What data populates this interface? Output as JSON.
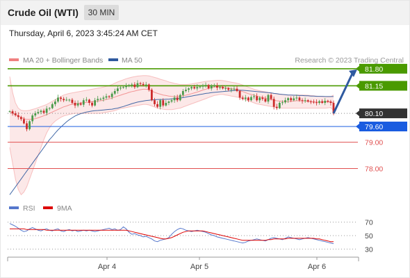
{
  "header": {
    "title": "Crude Oil (WTI)",
    "interval": "30 MIN"
  },
  "datetime": "Thursday, April 6, 2023 3:45:24 AM CET",
  "colors": {
    "bollinger": "#f08080",
    "ma50": "#2f5a9e",
    "resistance": "#4a9a00",
    "pivot": "#1a5ce0",
    "support": "#e05050",
    "last_price": "#333333",
    "rsi": "#5577cc",
    "rsi_ma": "#dd0000"
  },
  "chart_data": [
    {
      "type": "candlestick",
      "legend": [
        {
          "label": "MA 20 + Bollinger Bands",
          "color": "#f08080"
        },
        {
          "label": "MA 50",
          "color": "#2f5a9e"
        }
      ],
      "credit": "Research © 2023 Trading Central",
      "x_ticks": [
        "Apr 4",
        "Apr 5",
        "Apr 6"
      ],
      "ylim": [
        76.9,
        82.3
      ],
      "levels": [
        {
          "value": 81.8,
          "label": "81.80",
          "kind": "resistance"
        },
        {
          "value": 81.15,
          "label": "81.15",
          "kind": "resistance"
        },
        {
          "value": 80.1,
          "label": "80.10",
          "kind": "last_price"
        },
        {
          "value": 79.6,
          "label": "79.60",
          "kind": "pivot"
        },
        {
          "value": 79.0,
          "label": "79.00",
          "kind": "support"
        },
        {
          "value": 78.0,
          "label": "78.00",
          "kind": "support"
        }
      ],
      "close": [
        80.18,
        80.1,
        80.03,
        79.96,
        79.88,
        79.72,
        79.5,
        79.8,
        80.02,
        80.1,
        80.15,
        80.2,
        80.12,
        80.28,
        80.3,
        80.45,
        80.55,
        80.7,
        80.65,
        80.6,
        80.62,
        80.62,
        80.5,
        80.4,
        80.48,
        80.43,
        80.6,
        80.62,
        80.5,
        80.4,
        80.6,
        80.65,
        80.65,
        80.7,
        80.75,
        80.72,
        80.85,
        80.95,
        81.05,
        81.08,
        81.1,
        81.15,
        81.18,
        81.2,
        81.1,
        81.25,
        81.22,
        81.18,
        81.2,
        81.0,
        80.6,
        80.45,
        80.35,
        80.6,
        80.4,
        80.5,
        80.55,
        80.6,
        80.7,
        80.6,
        80.8,
        80.95,
        81.0,
        81.05,
        81.1,
        81.05,
        81.1,
        81.12,
        81.15,
        81.18,
        81.05,
        81.15,
        81.15,
        81.08,
        81.1,
        81.05,
        81.06,
        81.0,
        81.02,
        81.04,
        80.95,
        80.7,
        80.65,
        80.7,
        80.6,
        80.72,
        80.75,
        80.6,
        80.7,
        80.65,
        80.55,
        80.8,
        80.65,
        80.35,
        80.3,
        80.5,
        80.52,
        80.6,
        80.68,
        80.6,
        80.67,
        80.7,
        80.6,
        80.57,
        80.6,
        80.55,
        80.54,
        80.52,
        80.5,
        80.56,
        80.5,
        80.58,
        80.55,
        80.5,
        80.1
      ],
      "ma20": [
        80.15,
        80.1,
        80.05,
        80.0,
        79.95,
        79.9,
        79.87,
        79.87,
        79.88,
        79.9,
        79.93,
        79.97,
        80.01,
        80.05,
        80.1,
        80.15,
        80.2,
        80.25,
        80.3,
        80.35,
        80.38,
        80.42,
        80.45,
        80.47,
        80.48,
        80.5,
        80.51,
        80.52,
        80.53,
        80.54,
        80.55,
        80.57,
        80.58,
        80.6,
        80.63,
        80.65,
        80.68,
        80.72,
        80.76,
        80.79,
        80.83,
        80.86,
        80.9,
        80.93,
        80.95,
        80.98,
        81.0,
        81.02,
        81.02,
        81.0,
        80.95,
        80.9,
        80.86,
        80.83,
        80.8,
        80.78,
        80.76,
        80.75,
        80.74,
        80.74,
        80.75,
        80.77,
        80.79,
        80.82,
        80.85,
        80.88,
        80.91,
        80.95,
        80.99,
        81.02,
        81.05,
        81.08,
        81.1,
        81.11,
        81.11,
        81.1,
        81.08,
        81.06,
        81.04,
        81.02,
        81.0,
        80.97,
        80.93,
        80.89,
        80.85,
        80.82,
        80.79,
        80.76,
        80.73,
        80.7,
        80.67,
        80.65,
        80.63,
        80.6,
        80.58,
        80.57,
        80.56,
        80.55,
        80.55,
        80.56,
        80.57,
        80.58,
        80.58,
        80.58,
        80.57,
        80.56,
        80.55,
        80.54,
        80.53,
        80.53,
        80.53,
        80.54,
        80.54,
        80.54,
        80.5
      ],
      "ma50": [
        77.0,
        77.15,
        77.3,
        77.45,
        77.6,
        77.75,
        77.9,
        78.05,
        78.2,
        78.35,
        78.5,
        78.65,
        78.8,
        78.95,
        79.1,
        79.22,
        79.35,
        79.47,
        79.58,
        79.68,
        79.78,
        79.86,
        79.93,
        80.0,
        80.05,
        80.09,
        80.12,
        80.15,
        80.17,
        80.19,
        80.2,
        80.21,
        80.22,
        80.23,
        80.24,
        80.25,
        80.26,
        80.28,
        80.3,
        80.33,
        80.36,
        80.4,
        80.43,
        80.47,
        80.5,
        80.53,
        80.55,
        80.57,
        80.59,
        80.6,
        80.61,
        80.62,
        80.63,
        80.63,
        80.63,
        80.64,
        80.64,
        80.65,
        80.66,
        80.67,
        80.68,
        80.7,
        80.72,
        80.74,
        80.76,
        80.78,
        80.8,
        80.82,
        80.84,
        80.86,
        80.87,
        80.89,
        80.9,
        80.91,
        80.92,
        80.93,
        80.94,
        80.95,
        80.96,
        80.97,
        80.98,
        80.98,
        80.98,
        80.97,
        80.96,
        80.95,
        80.94,
        80.93,
        80.92,
        80.91,
        80.9,
        80.89,
        80.88,
        80.86,
        80.85,
        80.83,
        80.82,
        80.81,
        80.8,
        80.8,
        80.79,
        80.79,
        80.78,
        80.78,
        80.77,
        80.77,
        80.76,
        80.76,
        80.75,
        80.75,
        80.75,
        80.74,
        80.74,
        80.74,
        80.74
      ],
      "bb_upper": [
        81.5,
        80.9,
        80.5,
        80.3,
        80.22,
        80.2,
        80.2,
        80.22,
        80.25,
        80.28,
        80.32,
        80.36,
        80.4,
        80.44,
        80.5,
        80.56,
        80.62,
        80.68,
        80.74,
        80.8,
        80.83,
        80.86,
        80.88,
        80.9,
        80.92,
        80.94,
        80.96,
        80.98,
        81.0,
        81.02,
        81.04,
        81.06,
        81.08,
        81.1,
        81.13,
        81.16,
        81.2,
        81.25,
        81.3,
        81.34,
        81.38,
        81.42,
        81.45,
        81.48,
        81.5,
        81.52,
        81.53,
        81.54,
        81.54,
        81.53,
        81.5,
        81.47,
        81.44,
        81.4,
        81.37,
        81.34,
        81.3,
        81.27,
        81.24,
        81.22,
        81.2,
        81.2,
        81.2,
        81.21,
        81.22,
        81.24,
        81.26,
        81.28,
        81.3,
        81.32,
        81.33,
        81.34,
        81.35,
        81.36,
        81.36,
        81.35,
        81.33,
        81.31,
        81.29,
        81.27,
        81.25,
        81.22,
        81.18,
        81.14,
        81.1,
        81.06,
        81.02,
        80.99,
        80.96,
        80.94,
        80.92,
        80.9,
        80.88,
        80.86,
        80.84,
        80.83,
        80.82,
        80.81,
        80.8,
        80.8,
        80.8,
        80.8,
        80.8,
        80.8,
        80.8,
        80.79,
        80.78,
        80.77,
        80.76,
        80.75,
        80.74,
        80.74,
        80.73,
        80.73,
        80.8
      ],
      "bb_lower": [
        78.8,
        78.2,
        77.6,
        77.2,
        77.0,
        77.1,
        77.3,
        77.6,
        77.9,
        78.2,
        78.5,
        78.8,
        79.1,
        79.35,
        79.55,
        79.7,
        79.8,
        79.88,
        79.95,
        80.0,
        80.03,
        80.06,
        80.08,
        80.1,
        80.1,
        80.1,
        80.1,
        80.1,
        80.1,
        80.1,
        80.1,
        80.1,
        80.1,
        80.12,
        80.14,
        80.16,
        80.18,
        80.2,
        80.24,
        80.28,
        80.3,
        80.32,
        80.34,
        80.36,
        80.38,
        80.4,
        80.42,
        80.44,
        80.44,
        80.42,
        80.38,
        80.34,
        80.3,
        80.28,
        80.26,
        80.24,
        80.24,
        80.24,
        80.26,
        80.28,
        80.3,
        80.34,
        80.38,
        80.42,
        80.46,
        80.5,
        80.54,
        80.58,
        80.62,
        80.66,
        80.7,
        80.74,
        80.78,
        80.8,
        80.82,
        80.82,
        80.8,
        80.78,
        80.76,
        80.74,
        80.72,
        80.7,
        80.66,
        80.62,
        80.58,
        80.54,
        80.5,
        80.46,
        80.44,
        80.42,
        80.4,
        80.38,
        80.36,
        80.34,
        80.32,
        80.31,
        80.3,
        80.3,
        80.3,
        80.3,
        80.3,
        80.3,
        80.3,
        80.3,
        80.3,
        80.3,
        80.3,
        80.3,
        80.3,
        80.3,
        80.3,
        80.3,
        80.31,
        80.32,
        80.2
      ]
    },
    {
      "type": "line",
      "legend": [
        {
          "label": "RSI",
          "color": "#5577cc"
        },
        {
          "label": "9MA",
          "color": "#dd0000"
        }
      ],
      "ylim": [
        20,
        80
      ],
      "y_ticks": [
        "70",
        "50",
        "30"
      ],
      "series": [
        {
          "name": "RSI",
          "values": [
            68,
            66,
            64,
            61,
            58,
            56,
            57,
            60,
            62,
            60,
            58,
            57,
            59,
            60,
            58,
            57,
            59,
            60,
            57,
            56,
            58,
            59,
            57,
            58,
            56,
            57,
            58,
            57,
            58,
            57,
            56,
            57,
            58,
            59,
            60,
            61,
            59,
            60,
            58,
            59,
            63,
            60,
            55,
            52,
            53,
            51,
            50,
            48,
            49,
            47,
            45,
            42,
            41,
            43,
            44,
            45,
            47,
            52,
            56,
            59,
            61,
            60,
            58,
            57,
            56,
            57,
            58,
            57,
            56,
            55,
            53,
            51,
            50,
            48,
            47,
            46,
            45,
            44,
            43,
            42,
            41,
            40,
            39,
            40,
            42,
            43,
            44,
            45,
            44,
            43,
            42,
            44,
            46,
            47,
            46,
            45,
            44,
            46,
            48,
            47,
            46,
            45,
            44,
            45,
            46,
            47,
            46,
            45,
            44,
            43,
            42,
            41,
            40,
            39,
            38
          ]
        },
        {
          "name": "9MA",
          "values": [
            60,
            60,
            60,
            60,
            60,
            60,
            59,
            59,
            59,
            59,
            59,
            59,
            59,
            58,
            58,
            58,
            58,
            58,
            58,
            58,
            58,
            58,
            58,
            58,
            58,
            58,
            58,
            58,
            58,
            58,
            58,
            58,
            58,
            58,
            58,
            58,
            58,
            58,
            58,
            58,
            58,
            58,
            57,
            56,
            55,
            54,
            53,
            52,
            51,
            50,
            49,
            48,
            47,
            46,
            45,
            45,
            46,
            47,
            49,
            51,
            53,
            55,
            56,
            57,
            57,
            57,
            57,
            57,
            57,
            56,
            55,
            54,
            53,
            52,
            51,
            50,
            49,
            48,
            47,
            46,
            45,
            44,
            43,
            43,
            43,
            43,
            43,
            43,
            43,
            43,
            43,
            44,
            44,
            45,
            45,
            45,
            45,
            45,
            46,
            46,
            46,
            46,
            46,
            46,
            46,
            46,
            46,
            46,
            45,
            45,
            44,
            43,
            42,
            41,
            41
          ]
        }
      ]
    }
  ]
}
